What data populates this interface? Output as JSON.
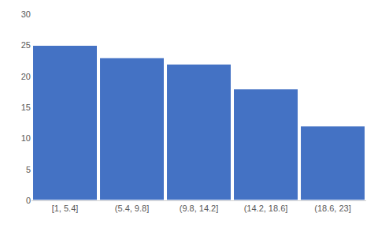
{
  "chart_data": {
    "type": "bar",
    "categories": [
      "[1, 5.4]",
      "(5.4, 9.8]",
      "(9.8, 14.2]",
      "(14.2, 18.6]",
      "(18.6, 23]"
    ],
    "values": [
      25,
      23,
      22,
      18,
      12
    ],
    "color": "#4472C4",
    "ylim": [
      0,
      30
    ],
    "yticks": [
      0,
      5,
      10,
      15,
      20,
      25,
      30
    ],
    "grid": false
  }
}
